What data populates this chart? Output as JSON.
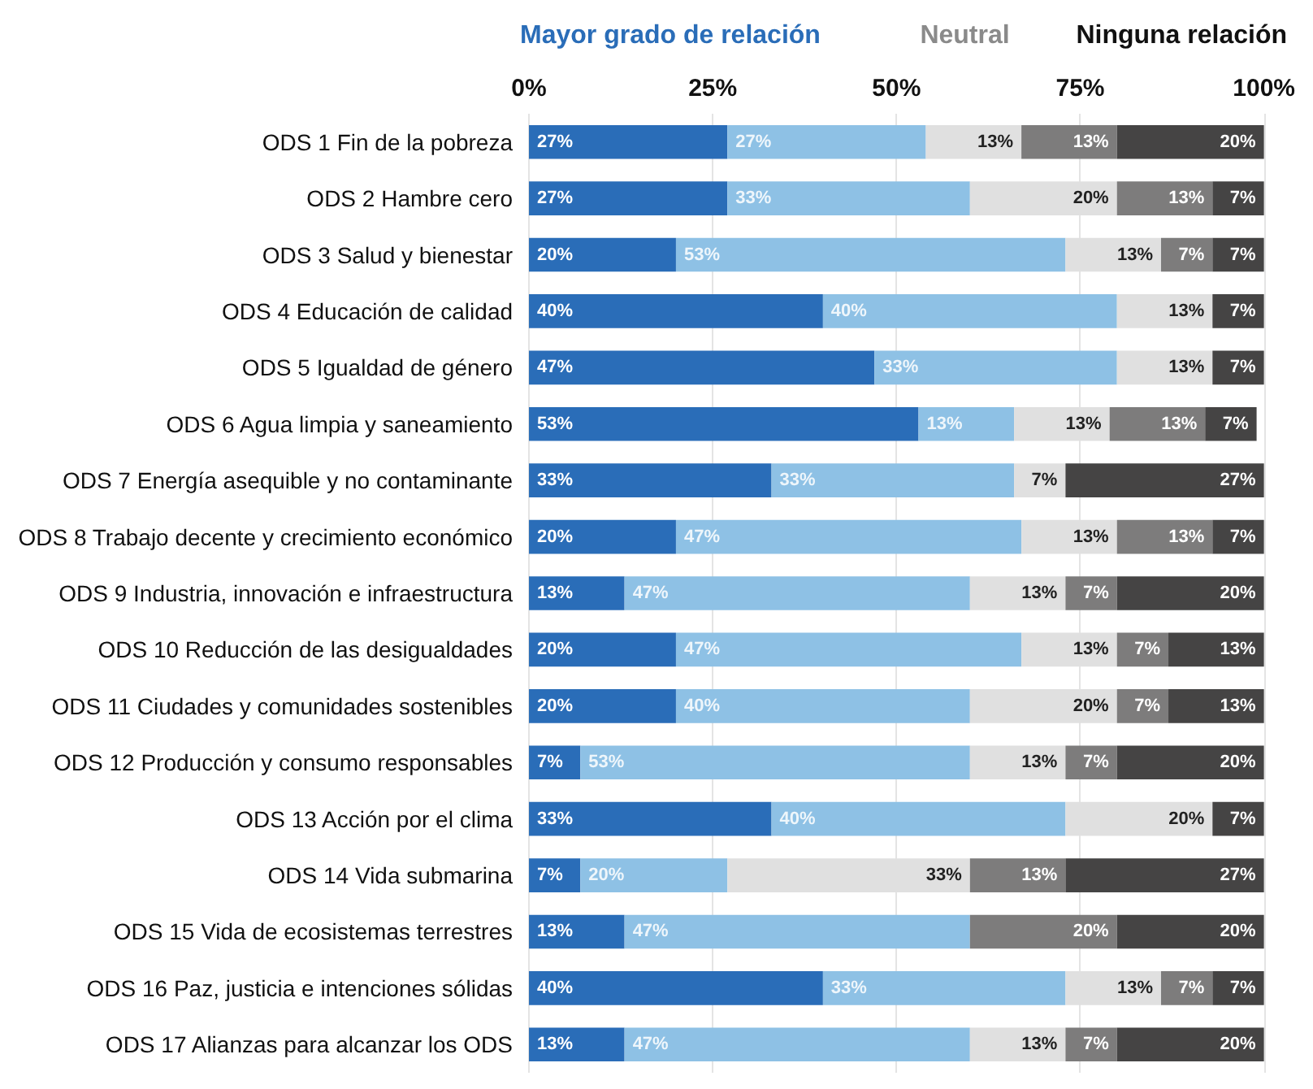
{
  "chart_data": {
    "type": "bar",
    "orientation": "horizontal",
    "stacked": true,
    "categories": [
      "ODS 1 Fin de la pobreza",
      "ODS 2 Hambre cero",
      "ODS 3 Salud y bienestar",
      "ODS 4 Educación de calidad",
      "ODS 5 Igualdad de género",
      "ODS 6 Agua limpia y saneamiento",
      "ODS 7 Energía asequible y no contaminante",
      "ODS 8 Trabajo decente y crecimiento económico",
      "ODS 9 Industria, innovación e infraestructura",
      "ODS 10 Reducción de las desigualdades",
      "ODS 11 Ciudades y comunidades sostenibles",
      "ODS 12 Producción y consumo responsables",
      "ODS 13 Acción por el clima",
      "ODS 14 Vida submarina",
      "ODS 15 Vida de ecosistemas terrestres",
      "ODS 16 Paz, justicia e intenciones sólidas",
      "ODS 17 Alianzas para alcanzar los ODS"
    ],
    "series": [
      {
        "color": "#2a6db8",
        "values": [
          27,
          27,
          20,
          40,
          47,
          53,
          33,
          20,
          13,
          20,
          20,
          7,
          33,
          7,
          13,
          40,
          13
        ],
        "value_labels": [
          "27%",
          "27%",
          "20%",
          "40%",
          "47%",
          "53%",
          "33%",
          "20%",
          "13%",
          "20%",
          "20%",
          "7%",
          "33%",
          "7%",
          "13%",
          "40%",
          "13%"
        ]
      },
      {
        "color": "#8ec1e5",
        "values": [
          27,
          33,
          53,
          40,
          33,
          13,
          33,
          47,
          47,
          47,
          40,
          53,
          40,
          20,
          47,
          33,
          47
        ],
        "value_labels": [
          "27%",
          "33%",
          "53%",
          "40%",
          "33%",
          "13%",
          "33%",
          "47%",
          "47%",
          "47%",
          "40%",
          "53%",
          "40%",
          "20%",
          "47%",
          "33%",
          "47%"
        ]
      },
      {
        "color": "#e0e0e0",
        "values": [
          13,
          20,
          13,
          13,
          13,
          13,
          7,
          13,
          13,
          13,
          20,
          13,
          20,
          33,
          null,
          13,
          13
        ],
        "value_labels": [
          "13%",
          "20%",
          "13%",
          "13%",
          "13%",
          "13%",
          "7%",
          "13%",
          "13%",
          "13%",
          "20%",
          "13%",
          "20%",
          "33%",
          null,
          "13%",
          "13%"
        ]
      },
      {
        "color": "#7d7c7c",
        "values": [
          13,
          13,
          7,
          null,
          null,
          13,
          null,
          13,
          7,
          7,
          7,
          7,
          null,
          13,
          20,
          7,
          7
        ],
        "value_labels": [
          "13%",
          "13%",
          "7%",
          null,
          null,
          "13%",
          null,
          "13%",
          "7%",
          "7%",
          "7%",
          "7%",
          null,
          "13%",
          "20%",
          "7%",
          "7%"
        ]
      },
      {
        "color": "#454444",
        "values": [
          20,
          7,
          7,
          7,
          7,
          7,
          27,
          7,
          20,
          13,
          13,
          20,
          7,
          27,
          20,
          7,
          20
        ],
        "value_labels": [
          "20%",
          "7%",
          "7%",
          "7%",
          "7%",
          "7%",
          "27%",
          "7%",
          "20%",
          "13%",
          "13%",
          "20%",
          "7%",
          "27%",
          "20%",
          "7%",
          "20%"
        ]
      }
    ],
    "xlim": [
      0,
      100
    ],
    "xticks": [
      {
        "value": 0,
        "label": "0%"
      },
      {
        "value": 25,
        "label": "25%"
      },
      {
        "value": 50,
        "label": "50%"
      },
      {
        "value": 75,
        "label": "75%"
      },
      {
        "value": 100,
        "label": "100%"
      }
    ],
    "grid": "x",
    "annotations": [
      "Mayor grado de relación",
      "Neutral",
      "Ninguna relación"
    ]
  }
}
